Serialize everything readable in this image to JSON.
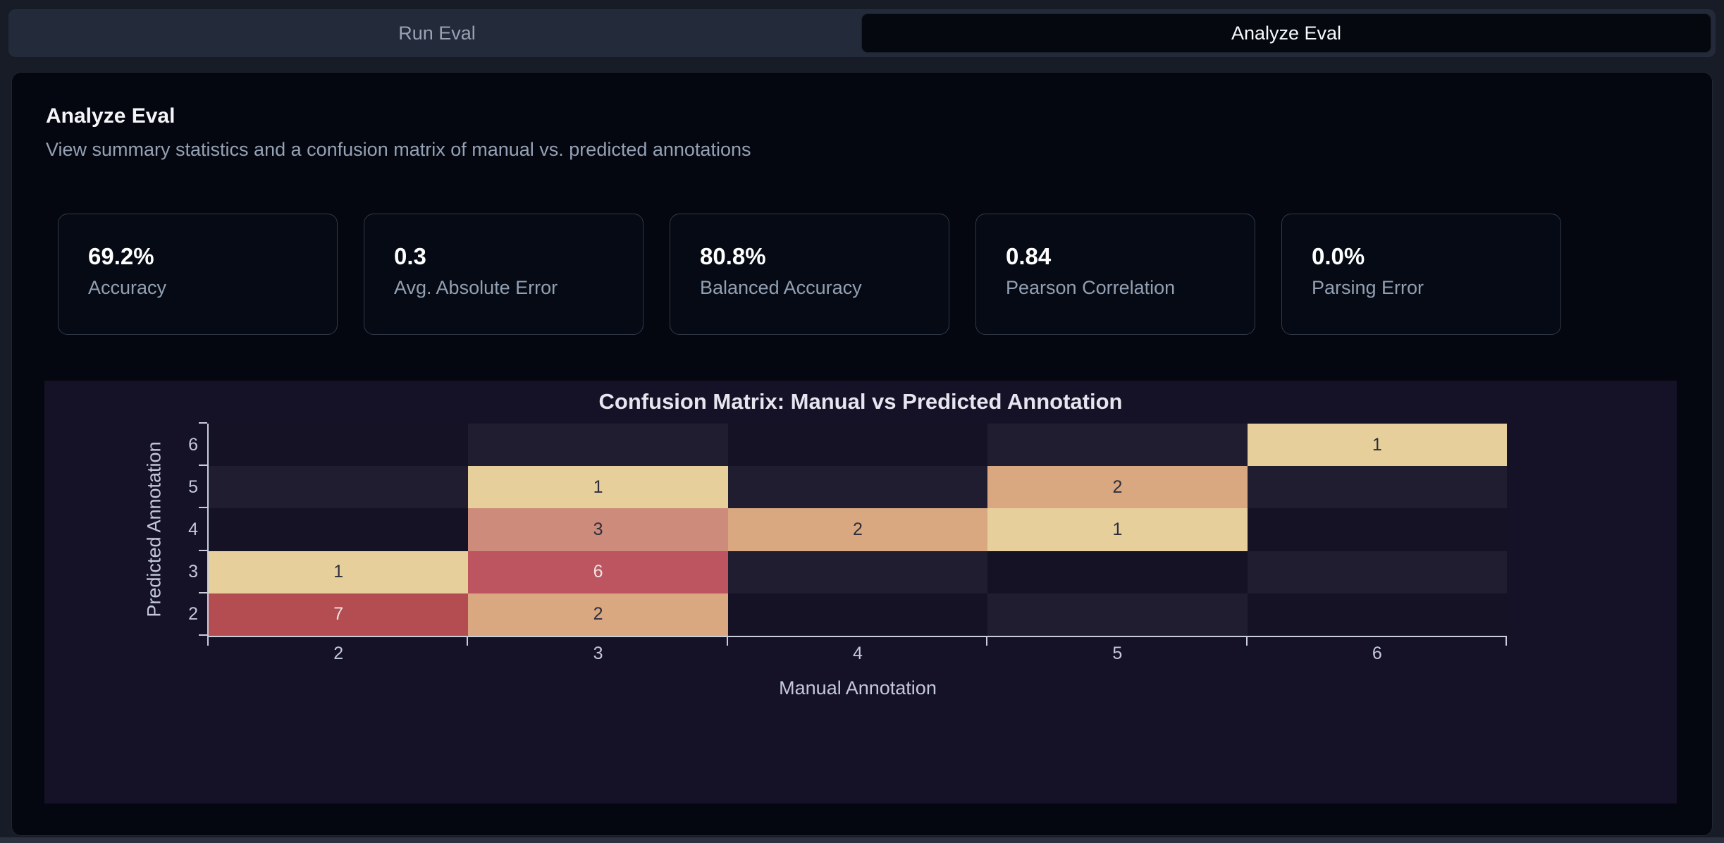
{
  "tabs": {
    "run_label": "Run Eval",
    "analyze_label": "Analyze Eval",
    "active": "Analyze Eval"
  },
  "panel": {
    "title": "Analyze Eval",
    "subtitle": "View summary statistics and a confusion matrix of manual vs. predicted annotations"
  },
  "stats": [
    {
      "value": "69.2%",
      "label": "Accuracy"
    },
    {
      "value": "0.3",
      "label": "Avg. Absolute Error"
    },
    {
      "value": "80.8%",
      "label": "Balanced Accuracy"
    },
    {
      "value": "0.84",
      "label": "Pearson Correlation"
    },
    {
      "value": "0.0%",
      "label": "Parsing Error"
    }
  ],
  "chart_data": {
    "type": "heatmap",
    "title": "Confusion Matrix: Manual vs Predicted Annotation",
    "xlabel": "Manual Annotation",
    "ylabel": "Predicted Annotation",
    "x_categories": [
      "2",
      "3",
      "4",
      "5",
      "6"
    ],
    "y_categories_top_to_bottom": [
      "6",
      "5",
      "4",
      "3",
      "2"
    ],
    "rows": [
      {
        "predicted": "6",
        "values": [
          0,
          0,
          0,
          0,
          1
        ]
      },
      {
        "predicted": "5",
        "values": [
          0,
          1,
          0,
          2,
          0
        ]
      },
      {
        "predicted": "4",
        "values": [
          0,
          3,
          2,
          1,
          0
        ]
      },
      {
        "predicted": "3",
        "values": [
          1,
          6,
          0,
          0,
          0
        ]
      },
      {
        "predicted": "2",
        "values": [
          7,
          2,
          0,
          0,
          0
        ]
      }
    ],
    "grid": false,
    "legend": "none",
    "colors": {
      "figure_background": "#151126",
      "axis": "#c9cedb",
      "zero_cell_dark": "#151226",
      "zero_cell_light": "#201d31",
      "value_scale": {
        "1": "#e6cf9b",
        "2": "#d9a880",
        "3": "#cd8b7b",
        "6": "#bc5560",
        "7": "#b44d52"
      },
      "annotation_dark_text": "#2e2e3c",
      "annotation_light_text": "#efe4e4"
    }
  }
}
